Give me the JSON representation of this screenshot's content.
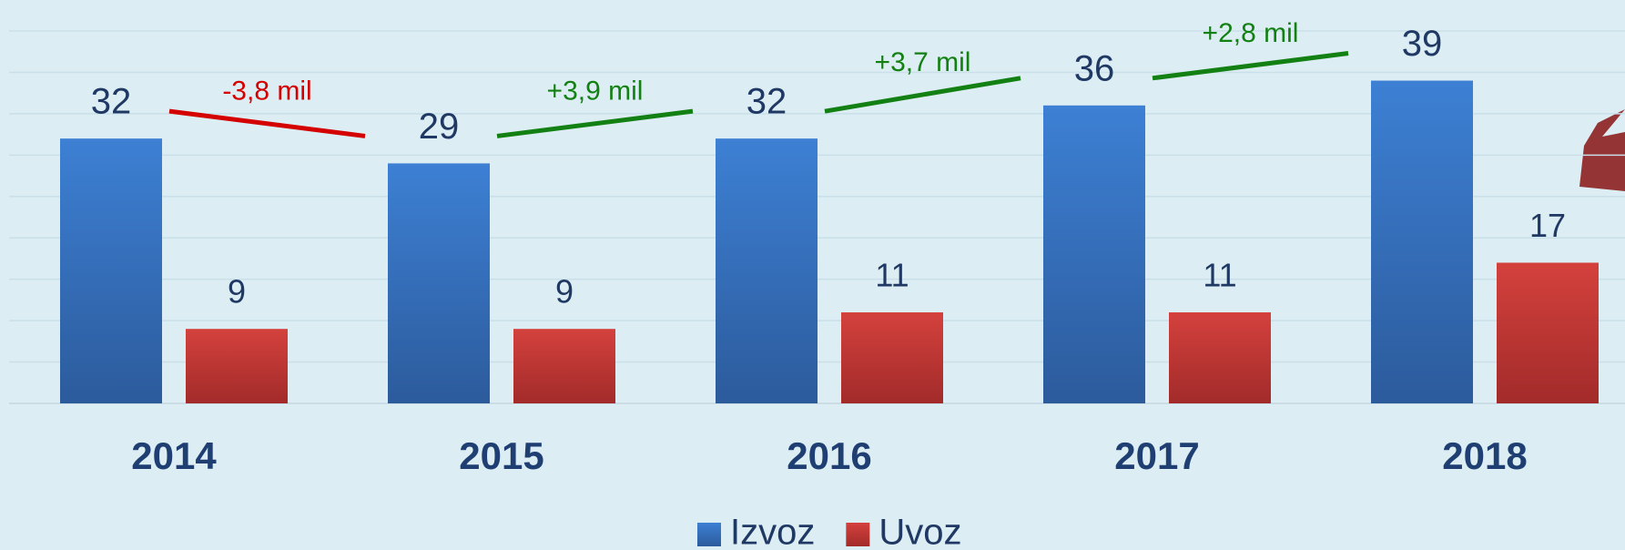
{
  "chart_data": {
    "type": "bar",
    "categories": [
      "2014",
      "2015",
      "2016",
      "2017",
      "2018"
    ],
    "series": [
      {
        "name": "Izvoz",
        "color": "#3a78c9",
        "values": [
          32,
          29,
          32,
          36,
          39
        ]
      },
      {
        "name": "Uvoz",
        "color": "#c83a3a",
        "values": [
          9,
          9,
          11,
          11,
          17
        ]
      }
    ],
    "annotations": [
      {
        "text": "-3,8 mil",
        "color": "#d40000"
      },
      {
        "text": "+3,9 mil",
        "color": "#138013"
      },
      {
        "text": "+3,7 mil",
        "color": "#138013"
      },
      {
        "text": "+2,8 mil",
        "color": "#138013"
      }
    ],
    "ylim": [
      0,
      45
    ],
    "yticks": [
      0,
      5,
      10,
      15,
      20,
      25,
      30,
      35,
      40,
      45
    ],
    "grid": true
  }
}
